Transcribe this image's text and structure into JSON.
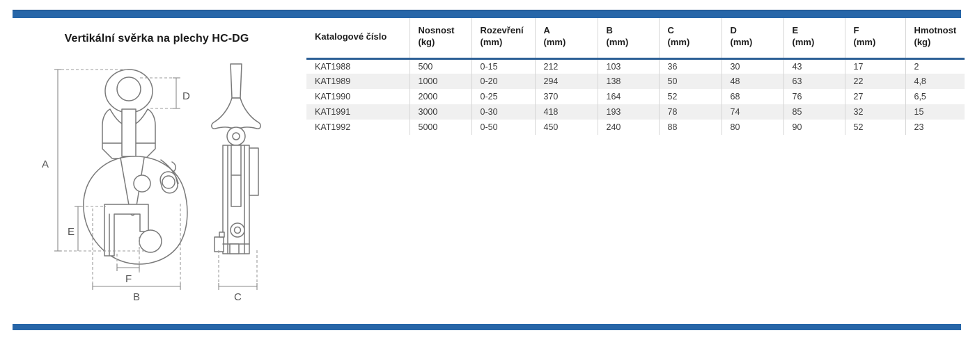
{
  "page": {
    "title": "Vertikální svěrka na plechy HC-DG"
  },
  "colors": {
    "accent": "#2766A8",
    "rule": "#2D6096",
    "stripe": "#F0F0F0"
  },
  "diagram": {
    "labels": {
      "A": "A",
      "B": "B",
      "C": "C",
      "D": "D",
      "E": "E",
      "F": "F"
    }
  },
  "table": {
    "columns": [
      {
        "label": "Katalogové číslo",
        "unit": ""
      },
      {
        "label": "Nosnost",
        "unit": "(kg)"
      },
      {
        "label": "Rozevření",
        "unit": "(mm)"
      },
      {
        "label": "A",
        "unit": "(mm)"
      },
      {
        "label": "B",
        "unit": "(mm)"
      },
      {
        "label": "C",
        "unit": "(mm)"
      },
      {
        "label": "D",
        "unit": "(mm)"
      },
      {
        "label": "E",
        "unit": "(mm)"
      },
      {
        "label": "F",
        "unit": "(mm)"
      },
      {
        "label": "Hmotnost",
        "unit": "(kg)"
      }
    ],
    "rows": [
      [
        "KAT1988",
        "500",
        "0-15",
        "212",
        "103",
        "36",
        "30",
        "43",
        "17",
        "2"
      ],
      [
        "KAT1989",
        "1000",
        "0-20",
        "294",
        "138",
        "50",
        "48",
        "63",
        "22",
        "4,8"
      ],
      [
        "KAT1990",
        "2000",
        "0-25",
        "370",
        "164",
        "52",
        "68",
        "76",
        "27",
        "6,5"
      ],
      [
        "KAT1991",
        "3000",
        "0-30",
        "418",
        "193",
        "78",
        "74",
        "85",
        "32",
        "15"
      ],
      [
        "KAT1992",
        "5000",
        "0-50",
        "450",
        "240",
        "88",
        "80",
        "90",
        "52",
        "23"
      ]
    ]
  }
}
